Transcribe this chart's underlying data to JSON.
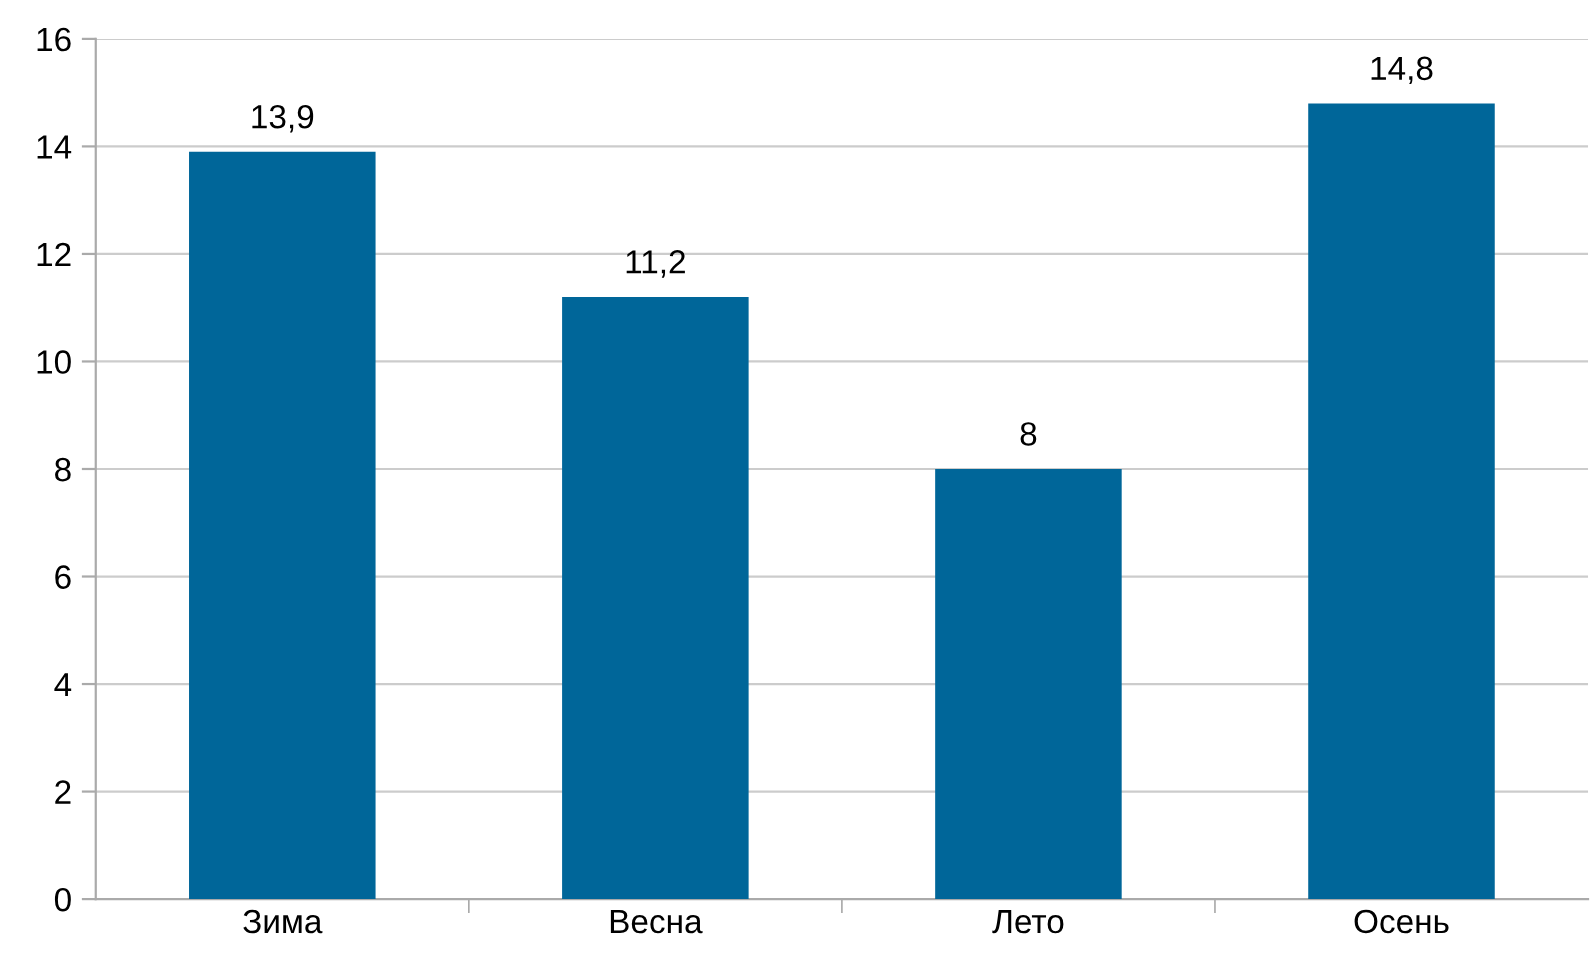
{
  "chart_data": {
    "type": "bar",
    "categories": [
      "Зима",
      "Весна",
      "Лето",
      "Осень"
    ],
    "values": [
      13.9,
      11.2,
      8,
      14.8
    ],
    "value_labels": [
      "13,9",
      "11,2",
      "8",
      "14,8"
    ],
    "color": "#006699",
    "ylim": [
      0,
      16
    ],
    "yticks": [
      0,
      2,
      4,
      6,
      8,
      10,
      12,
      14,
      16
    ],
    "grid": "y",
    "legend": false
  }
}
